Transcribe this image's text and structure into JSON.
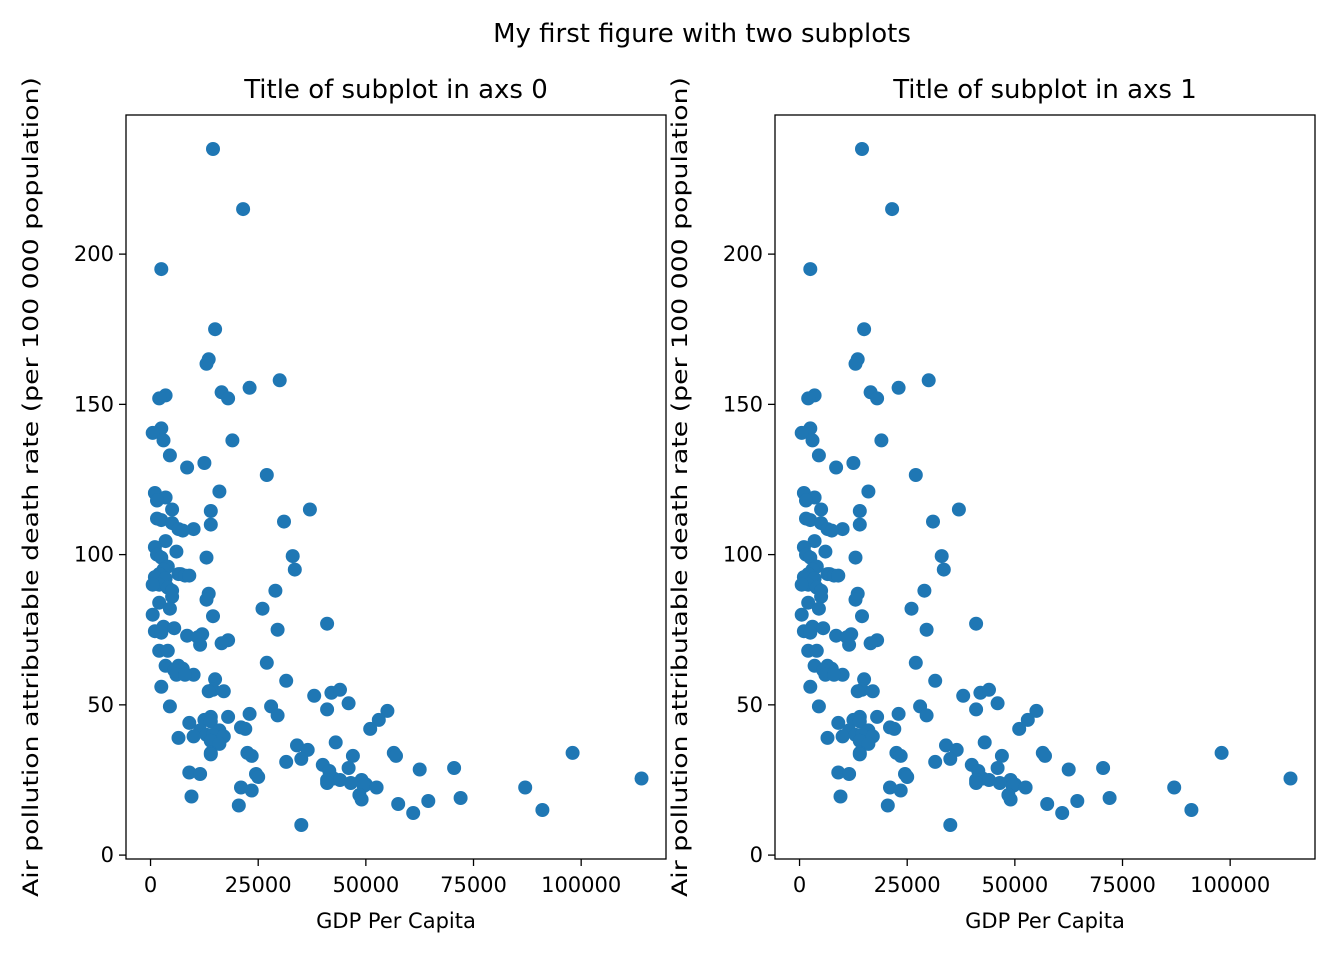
{
  "figure": {
    "suptitle": "My first figure with two subplots"
  },
  "chart_data": [
    {
      "type": "scatter",
      "title": "Title of subplot in axs 0",
      "xlabel": "GDP Per Capita",
      "ylabel": "Air pollution attributable death rate (per 100 000 population)",
      "xlim": [
        -5700,
        119700
      ],
      "ylim": [
        -1.3,
        246.3
      ],
      "xticks": [
        0,
        25000,
        50000,
        75000,
        100000
      ],
      "xtick_labels": [
        "0",
        "25000",
        "50000",
        "75000",
        "100000"
      ],
      "yticks": [
        0,
        50,
        100,
        150,
        200
      ],
      "ytick_labels": [
        "0",
        "50",
        "100",
        "150",
        "200"
      ],
      "grid": false,
      "marker_color": "#1f77b4",
      "points": [
        [
          14500,
          235
        ],
        [
          21500,
          215
        ],
        [
          2500,
          195
        ],
        [
          15000,
          175
        ],
        [
          13500,
          165
        ],
        [
          13000,
          163.5
        ],
        [
          30000,
          158
        ],
        [
          23000,
          155.5
        ],
        [
          16500,
          154
        ],
        [
          18000,
          152
        ],
        [
          3500,
          153
        ],
        [
          2000,
          152
        ],
        [
          2500,
          142
        ],
        [
          500,
          140.5
        ],
        [
          3000,
          138
        ],
        [
          19000,
          138
        ],
        [
          4500,
          133
        ],
        [
          12500,
          130.5
        ],
        [
          8500,
          129
        ],
        [
          27000,
          126.5
        ],
        [
          16000,
          121
        ],
        [
          1000,
          120.5
        ],
        [
          3500,
          119
        ],
        [
          1500,
          118
        ],
        [
          5000,
          115
        ],
        [
          14000,
          114.5
        ],
        [
          37000,
          115
        ],
        [
          1500,
          112
        ],
        [
          2500,
          111.5
        ],
        [
          31000,
          111
        ],
        [
          5000,
          110.5
        ],
        [
          14000,
          110
        ],
        [
          6500,
          108.5
        ],
        [
          10000,
          108.5
        ],
        [
          7500,
          108
        ],
        [
          3500,
          104.5
        ],
        [
          1000,
          102.5
        ],
        [
          6000,
          101
        ],
        [
          33000,
          99.5
        ],
        [
          1500,
          100
        ],
        [
          2500,
          99
        ],
        [
          13000,
          99
        ],
        [
          4000,
          96
        ],
        [
          3000,
          95
        ],
        [
          33500,
          95
        ],
        [
          2000,
          93.5
        ],
        [
          6500,
          93.5
        ],
        [
          7000,
          93.5
        ],
        [
          8000,
          93
        ],
        [
          9000,
          93
        ],
        [
          1000,
          92.5
        ],
        [
          3500,
          92
        ],
        [
          2000,
          90
        ],
        [
          500,
          90
        ],
        [
          4000,
          89
        ],
        [
          5000,
          88
        ],
        [
          13500,
          87
        ],
        [
          5000,
          86
        ],
        [
          29000,
          88
        ],
        [
          13000,
          85
        ],
        [
          2000,
          84
        ],
        [
          4500,
          82
        ],
        [
          26000,
          82
        ],
        [
          500,
          80
        ],
        [
          14500,
          79.5
        ],
        [
          41000,
          77
        ],
        [
          3000,
          76
        ],
        [
          5500,
          75.5
        ],
        [
          29500,
          75
        ],
        [
          1000,
          74.5
        ],
        [
          2500,
          74
        ],
        [
          8500,
          73
        ],
        [
          12000,
          73.5
        ],
        [
          11000,
          72.5
        ],
        [
          18000,
          71.5
        ],
        [
          16500,
          70.5
        ],
        [
          11500,
          70
        ],
        [
          2000,
          68
        ],
        [
          4000,
          68
        ],
        [
          6500,
          63
        ],
        [
          3500,
          63
        ],
        [
          27000,
          64
        ],
        [
          7500,
          62
        ],
        [
          5500,
          61.5
        ],
        [
          10000,
          60
        ],
        [
          6000,
          60
        ],
        [
          8000,
          60
        ],
        [
          15000,
          58.5
        ],
        [
          31500,
          58
        ],
        [
          2500,
          56
        ],
        [
          14500,
          55
        ],
        [
          17000,
          54.5
        ],
        [
          13500,
          54.5
        ],
        [
          42000,
          54
        ],
        [
          44000,
          55
        ],
        [
          38000,
          53
        ],
        [
          46000,
          50.5
        ],
        [
          4500,
          49.5
        ],
        [
          28000,
          49.5
        ],
        [
          41000,
          48.5
        ],
        [
          55000,
          48
        ],
        [
          23000,
          47
        ],
        [
          18000,
          46
        ],
        [
          14000,
          46
        ],
        [
          29500,
          46.5
        ],
        [
          12500,
          45
        ],
        [
          53000,
          45
        ],
        [
          14000,
          44.5
        ],
        [
          9000,
          44
        ],
        [
          51000,
          42
        ],
        [
          21000,
          42.5
        ],
        [
          22000,
          42
        ],
        [
          16000,
          41.5
        ],
        [
          11500,
          41.5
        ],
        [
          13000,
          40
        ],
        [
          14500,
          40
        ],
        [
          10000,
          39.5
        ],
        [
          6500,
          39
        ],
        [
          17000,
          39.5
        ],
        [
          14000,
          38
        ],
        [
          16000,
          37
        ],
        [
          43000,
          37.5
        ],
        [
          34000,
          36.5
        ],
        [
          36500,
          35
        ],
        [
          14000,
          34
        ],
        [
          14000,
          33.5
        ],
        [
          22500,
          34
        ],
        [
          23500,
          33
        ],
        [
          98000,
          34
        ],
        [
          56500,
          34
        ],
        [
          57000,
          33
        ],
        [
          47000,
          33
        ],
        [
          35000,
          32
        ],
        [
          31500,
          31
        ],
        [
          40000,
          30
        ],
        [
          70500,
          29
        ],
        [
          46000,
          29
        ],
        [
          41500,
          28
        ],
        [
          62500,
          28.5
        ],
        [
          9000,
          27.5
        ],
        [
          11500,
          27
        ],
        [
          24500,
          27
        ],
        [
          25000,
          26
        ],
        [
          42500,
          25.5
        ],
        [
          41000,
          25
        ],
        [
          44000,
          25
        ],
        [
          114000,
          25.5
        ],
        [
          49000,
          25
        ],
        [
          46500,
          24
        ],
        [
          50000,
          23.5
        ],
        [
          41000,
          24
        ],
        [
          49500,
          23
        ],
        [
          52500,
          22.5
        ],
        [
          87000,
          22.5
        ],
        [
          21000,
          22.5
        ],
        [
          23500,
          21.5
        ],
        [
          48500,
          20
        ],
        [
          72000,
          19
        ],
        [
          9500,
          19.5
        ],
        [
          49000,
          18.5
        ],
        [
          64500,
          18
        ],
        [
          57500,
          17
        ],
        [
          20500,
          16.5
        ],
        [
          91000,
          15
        ],
        [
          61000,
          14
        ],
        [
          35000,
          10
        ]
      ]
    },
    {
      "type": "scatter",
      "title": "Title of subplot in axs 1",
      "xlabel": "GDP Per Capita",
      "ylabel": "Air pollution attributable death rate (per 100 000 population)",
      "xlim": [
        -5700,
        119700
      ],
      "ylim": [
        -1.3,
        246.3
      ],
      "xticks": [
        0,
        25000,
        50000,
        75000,
        100000
      ],
      "xtick_labels": [
        "0",
        "25000",
        "50000",
        "75000",
        "100000"
      ],
      "yticks": [
        0,
        50,
        100,
        150,
        200
      ],
      "ytick_labels": [
        "0",
        "50",
        "100",
        "150",
        "200"
      ],
      "grid": false,
      "marker_color": "#1f77b4",
      "points": "same-as-axs-0"
    }
  ]
}
